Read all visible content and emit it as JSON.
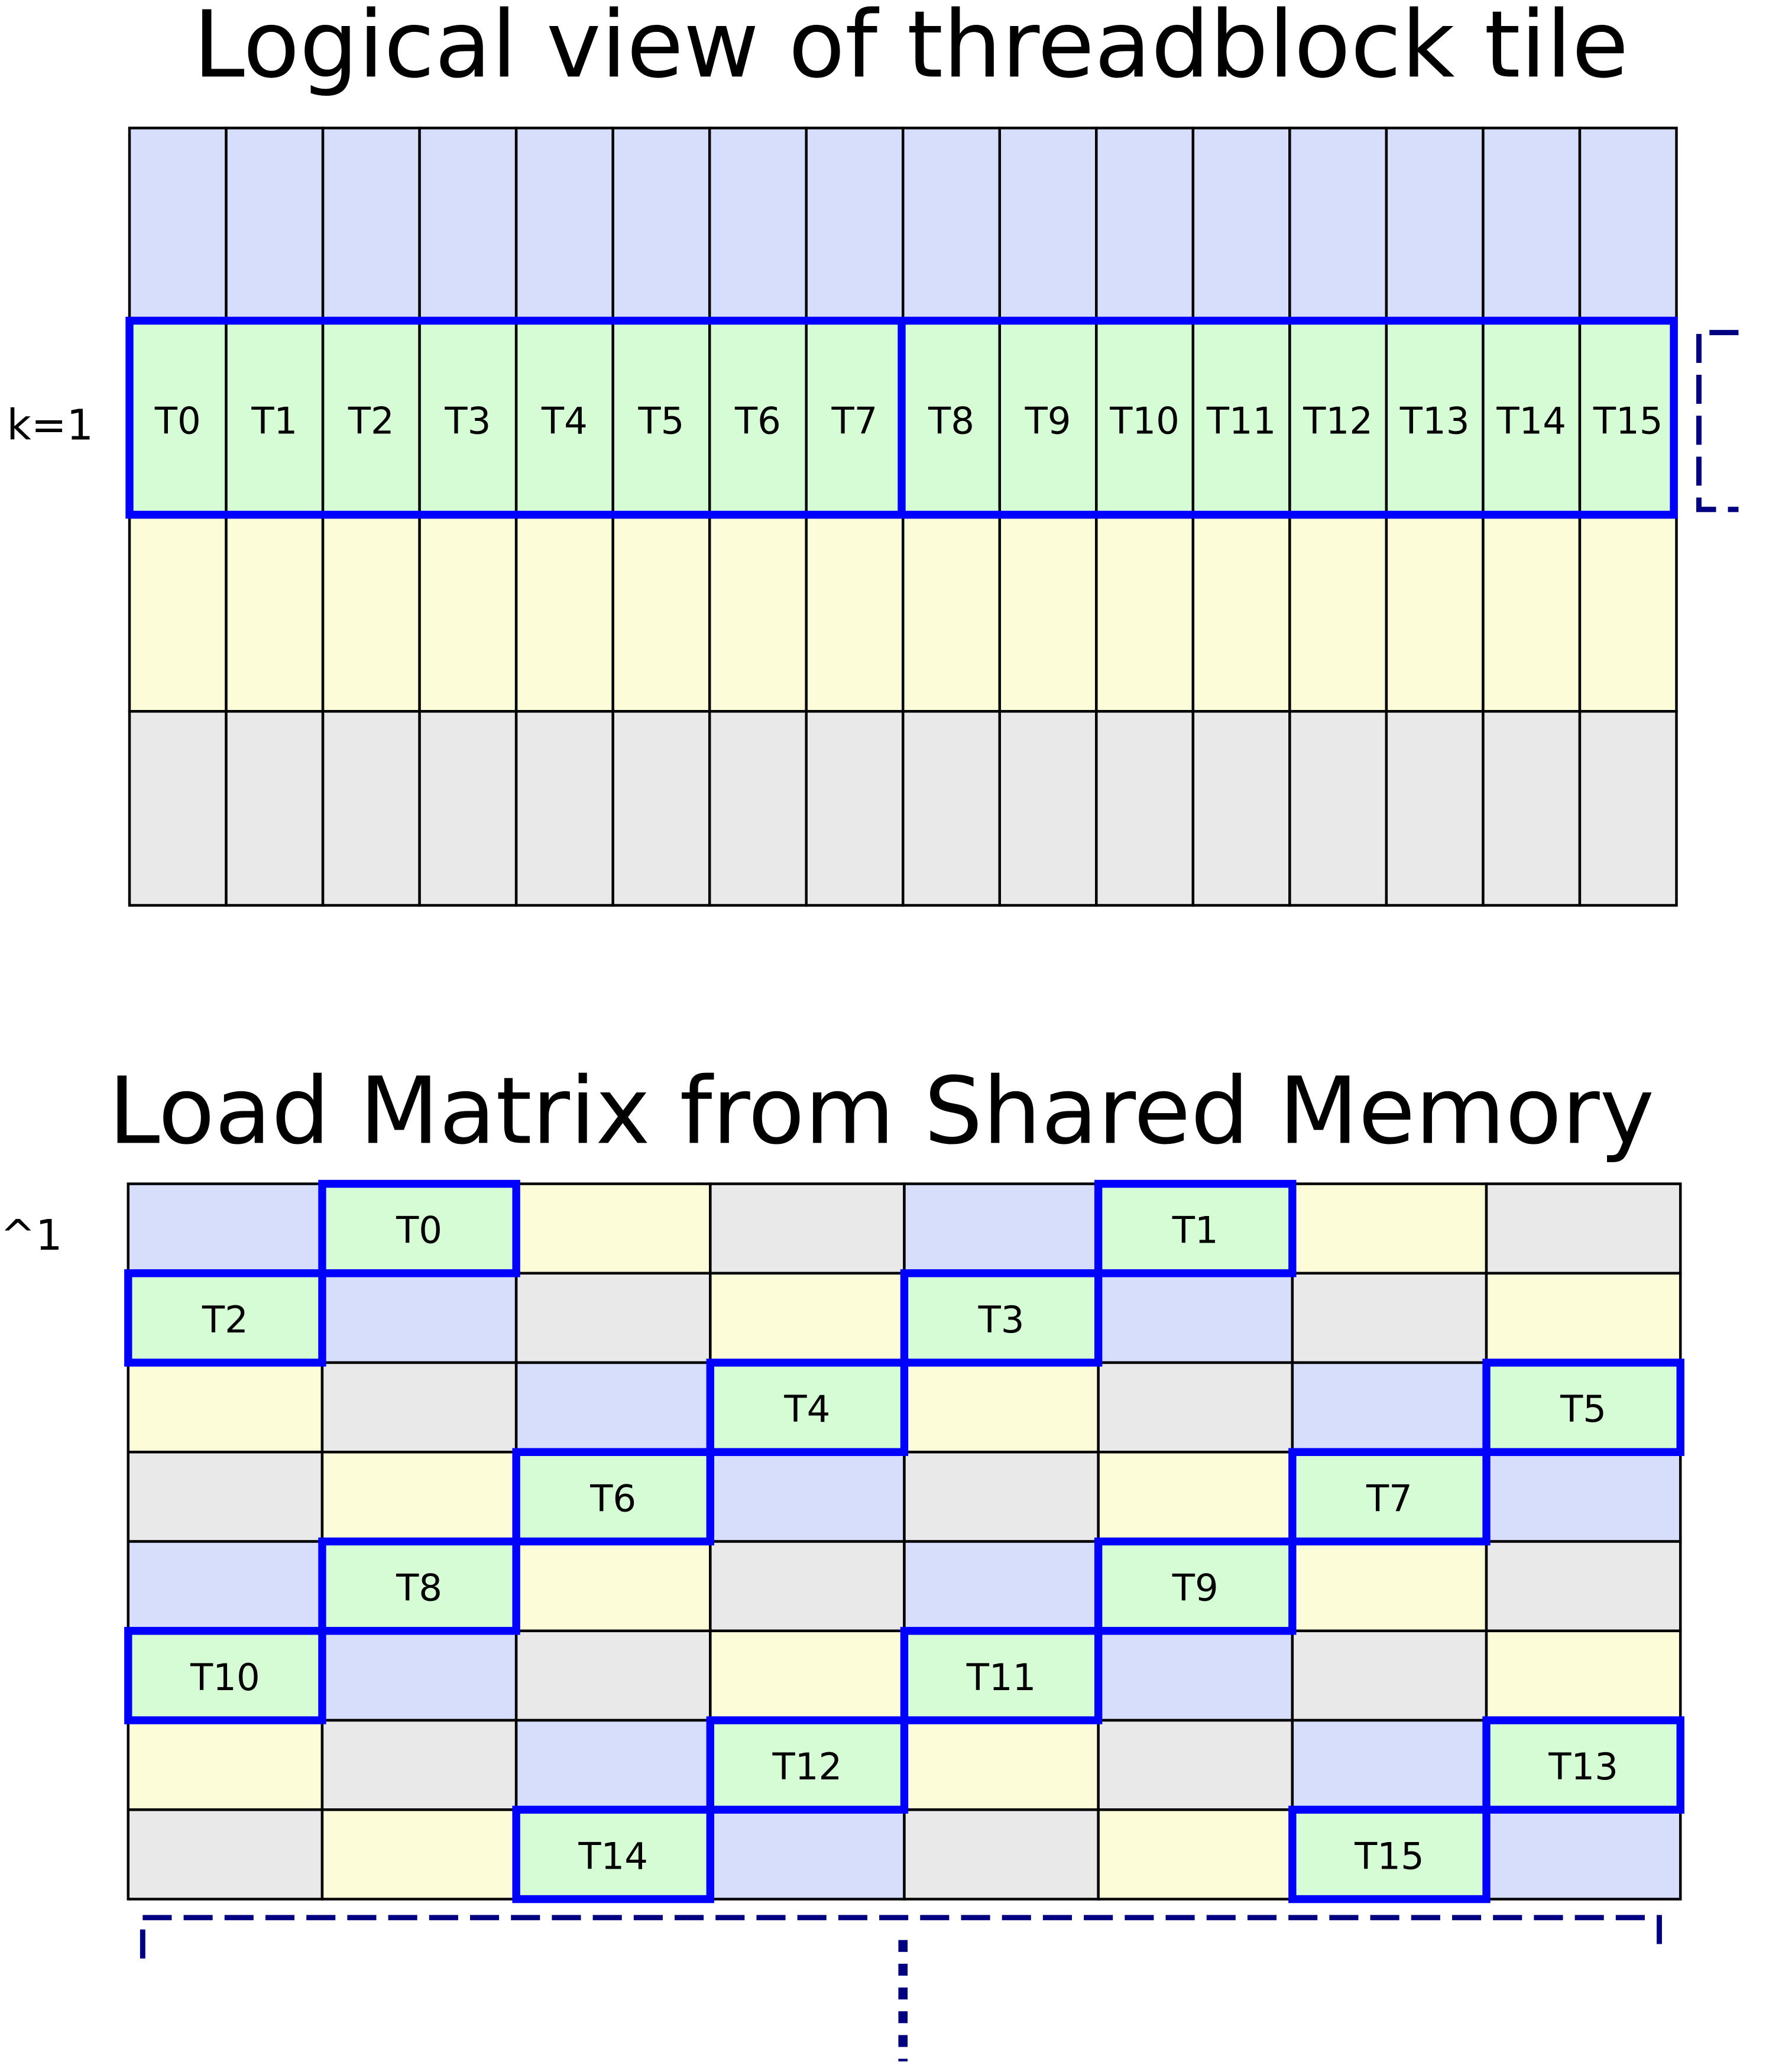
{
  "colors": {
    "blue": "#d6defc",
    "green": "#d6fcd6",
    "yellow": "#fcfcd8",
    "gray": "#e9e9e9",
    "highlight": "#0000ff",
    "bracket": "#000080",
    "grid": "#000000"
  },
  "top": {
    "title": "Logical view of threadblock tile",
    "row_label": "k=1",
    "row_colors": [
      "blue",
      "green",
      "yellow",
      "gray"
    ],
    "threads": [
      "T0",
      "T1",
      "T2",
      "T3",
      "T4",
      "T5",
      "T6",
      "T7",
      "T8",
      "T9",
      "T10",
      "T11",
      "T12",
      "T13",
      "T14",
      "T15"
    ]
  },
  "bottom": {
    "title": "Load Matrix from Shared Memory",
    "row_label": "^1",
    "rows": [
      [
        "blue",
        "T0",
        "yellow",
        "gray",
        "blue",
        "T1",
        "yellow",
        "gray"
      ],
      [
        "T2",
        "blue",
        "gray",
        "yellow",
        "T3",
        "blue",
        "gray",
        "yellow"
      ],
      [
        "yellow",
        "gray",
        "blue",
        "T4",
        "yellow",
        "gray",
        "blue",
        "T5"
      ],
      [
        "gray",
        "yellow",
        "T6",
        "blue",
        "gray",
        "yellow",
        "T7",
        "blue"
      ],
      [
        "blue",
        "T8",
        "yellow",
        "gray",
        "blue",
        "T9",
        "yellow",
        "gray"
      ],
      [
        "T10",
        "blue",
        "gray",
        "yellow",
        "T11",
        "blue",
        "gray",
        "yellow"
      ],
      [
        "yellow",
        "gray",
        "blue",
        "T12",
        "yellow",
        "gray",
        "blue",
        "T13"
      ],
      [
        "gray",
        "yellow",
        "T14",
        "blue",
        "gray",
        "yellow",
        "T15",
        "blue"
      ]
    ]
  }
}
